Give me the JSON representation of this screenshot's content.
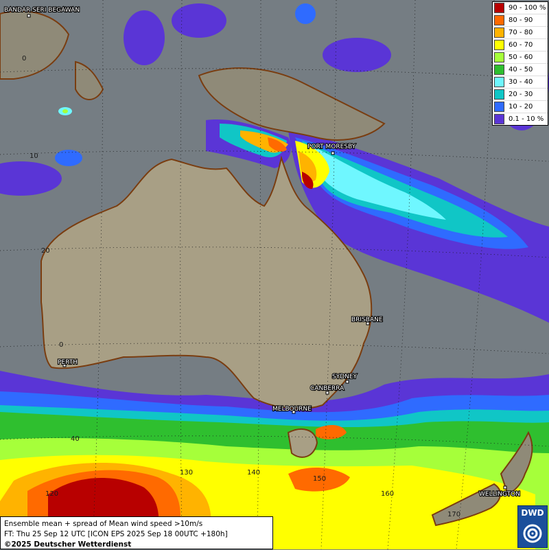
{
  "legend": {
    "items": [
      {
        "label": "90 - 100 %",
        "color": "#b80000"
      },
      {
        "label": "80 - 90",
        "color": "#ff6a00"
      },
      {
        "label": "70 - 80",
        "color": "#ffb300"
      },
      {
        "label": "60 - 70",
        "color": "#ffff00"
      },
      {
        "label": "50 - 60",
        "color": "#a6ff3a"
      },
      {
        "label": "40 - 50",
        "color": "#2fbf2f"
      },
      {
        "label": "30 - 40",
        "color": "#6ff7ff"
      },
      {
        "label": "20 - 30",
        "color": "#10c6c6"
      },
      {
        "label": "10 - 20",
        "color": "#2f6bff"
      },
      {
        "label": "0.1 - 10 %",
        "color": "#5a35d6"
      }
    ]
  },
  "cities": [
    {
      "label": "BANDAR SERI BEGAWAN"
    },
    {
      "label": "PORT MORESBY"
    },
    {
      "label": "BRISBANE"
    },
    {
      "label": "PERTH"
    },
    {
      "label": "SYDNEY"
    },
    {
      "label": "CANBERRA"
    },
    {
      "label": "MELBOURNE"
    },
    {
      "label": "WELLINGTON"
    }
  ],
  "grid_labels": {
    "lat": [
      "0",
      "10",
      "20",
      "0",
      "40"
    ],
    "lon": [
      "130",
      "140",
      "150",
      "160",
      "170",
      "120"
    ]
  },
  "info": {
    "line1": "Ensemble mean + spread of Mean wind speed >10m/s",
    "line2": "FT: Thu 25 Sep 12 UTC [ICON EPS 2025 Sep 18 00UTC +180h]",
    "copyright": "©2025 Deutscher Wetterdienst"
  },
  "logo": {
    "text": "DWD"
  }
}
